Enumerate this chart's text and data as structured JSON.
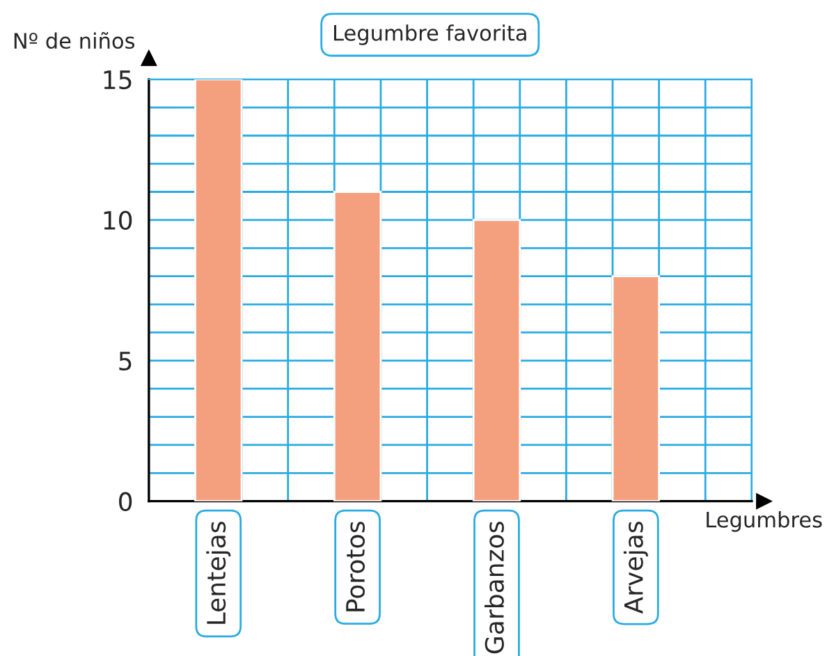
{
  "chart_data": {
    "type": "bar",
    "title": "Legumbre favorita",
    "xlabel": "Legumbres",
    "ylabel": "Nº de niños",
    "categories": [
      "Lentejas",
      "Porotos",
      "Garbanzos",
      "Arvejas"
    ],
    "values": [
      15,
      11,
      10,
      8
    ],
    "color": "#f4a07e",
    "ylim": [
      0,
      15
    ],
    "yticks": [
      0,
      5,
      10,
      15
    ],
    "grid": true
  }
}
